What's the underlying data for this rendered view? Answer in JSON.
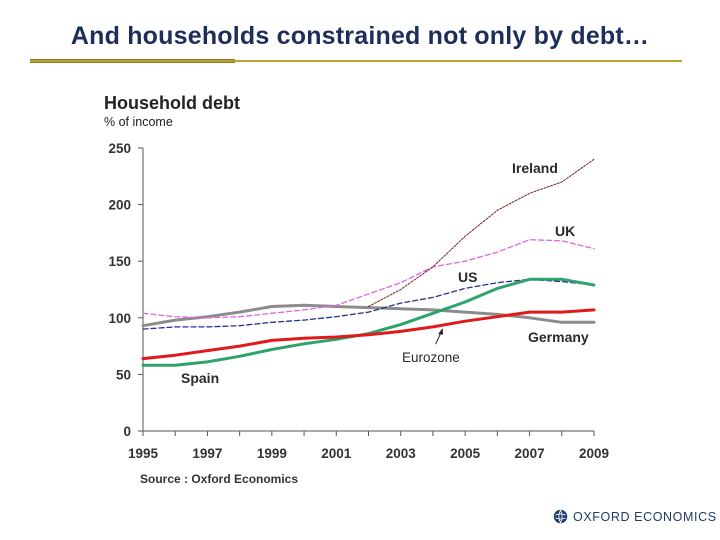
{
  "slide": {
    "title": "And households constrained not only by debt…"
  },
  "logo": {
    "text": "OXFORD ECONOMICS"
  },
  "colors": {
    "title": "#1f2d5a",
    "rule": "#b8a13a",
    "ireland": "#7a1c1c",
    "uk": "#e066e0",
    "us": "#2b2f8c",
    "eurozone": "#e01a1a",
    "spain": "#2ea36b",
    "germany": "#8c8c8c"
  },
  "chart_data": {
    "type": "line",
    "title": "Household debt",
    "subtitle": "% of income",
    "source": "Source : Oxford Economics",
    "xlim": [
      1995,
      2009
    ],
    "ylim": [
      0,
      250
    ],
    "yticks": [
      0,
      50,
      100,
      150,
      200,
      250
    ],
    "xticks": [
      1995,
      1997,
      1999,
      2001,
      2003,
      2005,
      2007,
      2009
    ],
    "grid": false,
    "series": [
      {
        "name": "Ireland",
        "label": "Ireland",
        "color": "#7a1c1c",
        "style": "thin",
        "x": [
          2002,
          2003,
          2004,
          2005,
          2006,
          2007,
          2008,
          2009
        ],
        "y": [
          110,
          125,
          145,
          172,
          195,
          210,
          220,
          240
        ]
      },
      {
        "name": "UK",
        "label": "UK",
        "color": "#e066e0",
        "style": "dashed",
        "x": [
          1995,
          1996,
          1997,
          1998,
          1999,
          2000,
          2001,
          2002,
          2003,
          2004,
          2005,
          2006,
          2007,
          2008,
          2009
        ],
        "y": [
          104,
          101,
          100,
          101,
          104,
          107,
          111,
          121,
          131,
          145,
          150,
          158,
          169,
          168,
          161
        ]
      },
      {
        "name": "US",
        "label": "US",
        "color": "#2b2f8c",
        "style": "dashed",
        "x": [
          1995,
          1996,
          1997,
          1998,
          1999,
          2000,
          2001,
          2002,
          2003,
          2004,
          2005,
          2006,
          2007,
          2008,
          2009
        ],
        "y": [
          90,
          92,
          92,
          93,
          96,
          98,
          101,
          105,
          113,
          118,
          126,
          131,
          134,
          132,
          129
        ]
      },
      {
        "name": "Germany",
        "label": "Germany",
        "color": "#8c8c8c",
        "style": "bold",
        "x": [
          1995,
          1996,
          1997,
          1998,
          1999,
          2000,
          2001,
          2002,
          2003,
          2004,
          2005,
          2006,
          2007,
          2008,
          2009
        ],
        "y": [
          93,
          98,
          101,
          105,
          110,
          111,
          110,
          109,
          108,
          107,
          105,
          103,
          100,
          96,
          96
        ]
      },
      {
        "name": "Spain",
        "label": "Spain",
        "color": "#2ea36b",
        "style": "bold",
        "x": [
          1995,
          1996,
          1997,
          1998,
          1999,
          2000,
          2001,
          2002,
          2003,
          2004,
          2005,
          2006,
          2007,
          2008,
          2009
        ],
        "y": [
          58,
          58,
          61,
          66,
          72,
          77,
          81,
          86,
          94,
          104,
          114,
          126,
          134,
          134,
          129
        ]
      },
      {
        "name": "Eurozone",
        "label": "Eurozone",
        "color": "#e01a1a",
        "style": "bold",
        "x": [
          1995,
          1996,
          1997,
          1998,
          1999,
          2000,
          2001,
          2002,
          2003,
          2004,
          2005,
          2006,
          2007,
          2008,
          2009
        ],
        "y": [
          64,
          67,
          71,
          75,
          80,
          82,
          83,
          85,
          88,
          92,
          97,
          101,
          105,
          105,
          107
        ]
      }
    ],
    "annotations": [
      {
        "text": "Eurozone",
        "points_to": "Eurozone",
        "at_x": 2004.3
      }
    ]
  }
}
